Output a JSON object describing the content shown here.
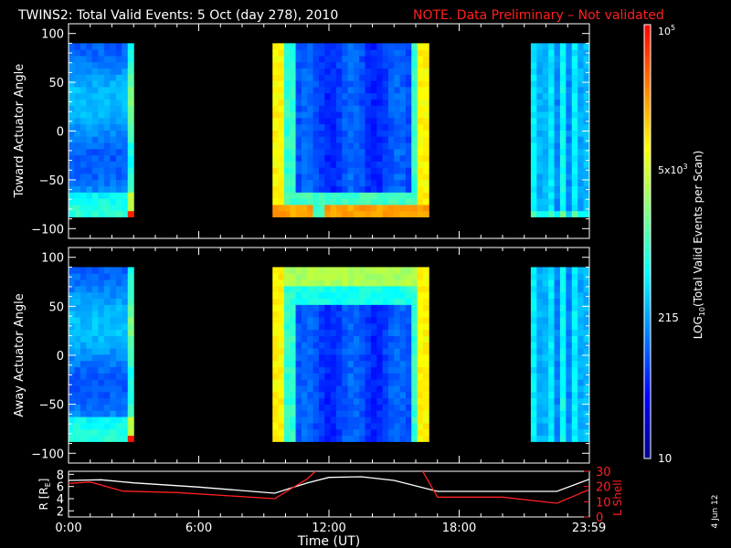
{
  "title": {
    "main": "TWINS2: Total Valid Events:  5 Oct (day 278), 2010",
    "note": "NOTE. Data Preliminary – Not validated"
  },
  "colorbar": {
    "label": "LOG",
    "label_sub": "10",
    "label_rest": "(Total Valid Events per Scan)",
    "tick_labels": {
      "t10": "10",
      "t215": "215",
      "t5e3_base": "5x10",
      "t5e3_exp": "3",
      "t1e5_base": "10",
      "t1e5_exp": "5"
    },
    "range": [
      10,
      100000
    ],
    "scale": "log",
    "colormap": [
      "#00008b",
      "#0000ff",
      "#0080ff",
      "#00ffff",
      "#80ff80",
      "#ffff00",
      "#ff8000",
      "#ff0000"
    ]
  },
  "side_label": "4 Jun 12",
  "chart_data": [
    {
      "type": "heatmap",
      "panel": "top",
      "ylabel": "Toward Actuator Angle",
      "y_tick_labels": [
        "100",
        "50",
        "0",
        "−50",
        "−100"
      ],
      "ylim": [
        -110,
        110
      ],
      "xlim_hours": [
        0,
        24
      ],
      "data_blocks_hours": [
        [
          0,
          3
        ],
        [
          9.4,
          16.6
        ],
        [
          21.3,
          24
        ]
      ],
      "data_angle_range": [
        -88,
        90
      ],
      "colorscale": "log",
      "zlim": [
        10,
        100000
      ]
    },
    {
      "type": "heatmap",
      "panel": "middle",
      "ylabel": "Away Actuator Angle",
      "y_tick_labels": [
        "100",
        "50",
        "0",
        "−50",
        "−100"
      ],
      "ylim": [
        -110,
        110
      ],
      "xlim_hours": [
        0,
        24
      ],
      "data_blocks_hours": [
        [
          0,
          3
        ],
        [
          9.4,
          16.6
        ],
        [
          21.3,
          24
        ]
      ],
      "data_angle_range": [
        -88,
        90
      ],
      "colorscale": "log",
      "zlim": [
        10,
        100000
      ]
    },
    {
      "type": "line",
      "panel": "bottom",
      "ylabel_left": "R [R",
      "ylabel_left_sub": "E",
      "ylabel_left_close": "]",
      "ylabel_right": "L Shell",
      "y_left_tick_labels": [
        "8",
        "6",
        "4",
        "2"
      ],
      "y_right_tick_labels": [
        "30",
        "20",
        "10",
        "0"
      ],
      "ylim_left": [
        1,
        8.5
      ],
      "ylim_right": [
        0,
        30
      ],
      "xlabel": "Time (UT)",
      "x_tick_labels": [
        "0:00",
        "6:00",
        "12:00",
        "18:00",
        "23:59"
      ],
      "x_ticks_hours": [
        0,
        6,
        12,
        18,
        23.983
      ],
      "series": [
        {
          "axis": "left",
          "color": "#ffffff",
          "x": [
            0,
            1.5,
            3,
            6,
            9.5,
            11,
            12,
            13.5,
            15,
            17,
            19,
            22.5,
            24
          ],
          "y": [
            7,
            7.1,
            6.6,
            5.9,
            4.9,
            6.6,
            7.5,
            7.6,
            7,
            5.2,
            5.2,
            5.2,
            7.2
          ]
        },
        {
          "axis": "right",
          "color": "#ff2020",
          "x": [
            0,
            1,
            2.5,
            5,
            9.5,
            11,
            11.6
          ],
          "y": [
            22,
            23,
            17,
            16,
            12,
            25,
            33
          ]
        },
        {
          "axis": "right",
          "color": "#ff2020",
          "x": [
            16.2,
            17,
            20,
            22.5,
            24
          ],
          "y": [
            33,
            13,
            13,
            9,
            18
          ]
        }
      ]
    }
  ]
}
